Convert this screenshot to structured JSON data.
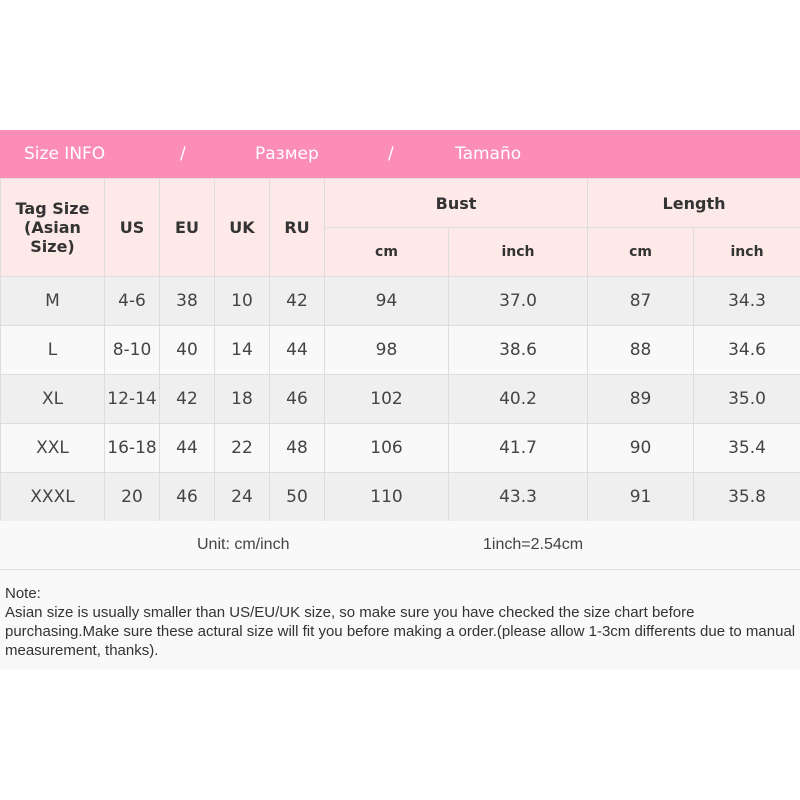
{
  "title_bar": {
    "en": "Size INFO",
    "sep": "/",
    "ru": "Размер",
    "es": "Tamaño",
    "color": "#fc8db6"
  },
  "headers": {
    "tag": "Tag Size (Asian Size)",
    "us": "US",
    "eu": "EU",
    "uk": "UK",
    "ru": "RU",
    "bust": "Bust",
    "length": "Length",
    "cm": "cm",
    "inch": "inch"
  },
  "rows": [
    [
      "M",
      "4-6",
      "38",
      "10",
      "42",
      "94",
      "37.0",
      "87",
      "34.3"
    ],
    [
      "L",
      "8-10",
      "40",
      "14",
      "44",
      "98",
      "38.6",
      "88",
      "34.6"
    ],
    [
      "XL",
      "12-14",
      "42",
      "18",
      "46",
      "102",
      "40.2",
      "89",
      "35.0"
    ],
    [
      "XXL",
      "16-18",
      "44",
      "22",
      "48",
      "106",
      "41.7",
      "90",
      "35.4"
    ],
    [
      "XXXL",
      "20",
      "46",
      "24",
      "50",
      "110",
      "43.3",
      "91",
      "35.8"
    ]
  ],
  "unit": {
    "label": "Unit: cm/inch",
    "conversion": "1inch=2.54cm"
  },
  "note": {
    "title": "Note:",
    "text": "Asian size is usually smaller than US/EU/UK size, so make sure you have checked the size chart before purchasing.Make sure these actural size will fit you before making a order.(please allow 1-3cm differents due to manual measurement, thanks)."
  }
}
